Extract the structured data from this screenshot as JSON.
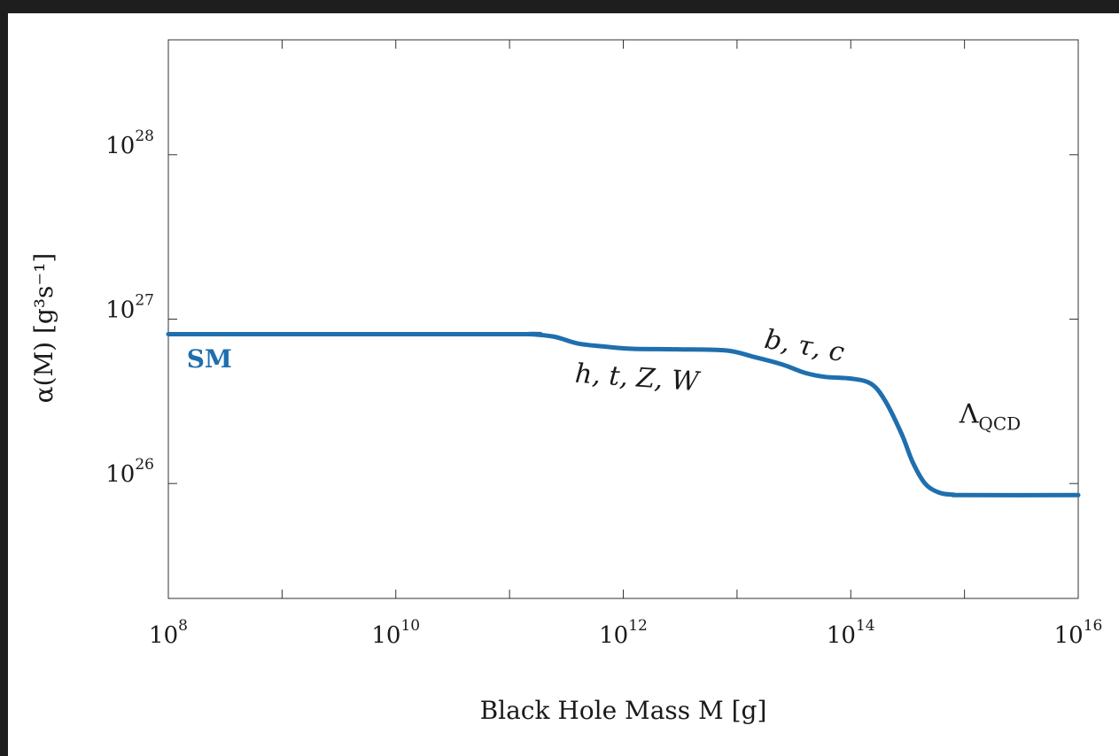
{
  "chart_data": {
    "type": "line",
    "title": "",
    "xlabel": "Black Hole Mass M [g]",
    "ylabel": "α(M) [g³s⁻¹]",
    "x_scale": "log",
    "y_scale": "log",
    "xlim": [
      100000000.0,
      1e+16
    ],
    "ylim": [
      2e+25,
      5e+28
    ],
    "x_ticks": [
      {
        "base": "10",
        "exp": "8",
        "value": 100000000.0
      },
      {
        "base": "10",
        "exp": "10",
        "value": 10000000000.0
      },
      {
        "base": "10",
        "exp": "12",
        "value": 1000000000000.0
      },
      {
        "base": "10",
        "exp": "14",
        "value": 100000000000000.0
      },
      {
        "base": "10",
        "exp": "16",
        "value": 1e+16
      }
    ],
    "y_ticks": [
      {
        "base": "10",
        "exp": "26",
        "value": 1e+26
      },
      {
        "base": "10",
        "exp": "27",
        "value": 1e+27
      },
      {
        "base": "10",
        "exp": "28",
        "value": 1e+28
      }
    ],
    "grid": false,
    "series": [
      {
        "name": "SM",
        "color": "#1f6fae",
        "points": [
          [
            100000000.0,
            8.1e+26
          ],
          [
            100000000000.0,
            8.1e+26
          ],
          [
            150000000000.0,
            8.1e+26
          ],
          [
            250000000000.0,
            7.8e+26
          ],
          [
            400000000000.0,
            7.1e+26
          ],
          [
            700000000000.0,
            6.8e+26
          ],
          [
            1200000000000.0,
            6.6e+26
          ],
          [
            3000000000000.0,
            6.55e+26
          ],
          [
            8000000000000.0,
            6.45e+26
          ],
          [
            14000000000000.0,
            5.9e+26
          ],
          [
            25000000000000.0,
            5.3e+26
          ],
          [
            40000000000000.0,
            4.7e+26
          ],
          [
            60000000000000.0,
            4.45e+26
          ],
          [
            100000000000000.0,
            4.35e+26
          ],
          [
            150000000000000.0,
            4.05e+26
          ],
          [
            200000000000000.0,
            3.2e+26
          ],
          [
            280000000000000.0,
            2e+26
          ],
          [
            350000000000000.0,
            1.35e+26
          ],
          [
            450000000000000.0,
            1e+26
          ],
          [
            600000000000000.0,
            8.8e+25
          ],
          [
            800000000000000.0,
            8.55e+25
          ],
          [
            1000000000000000.0,
            8.5e+25
          ],
          [
            1e+16,
            8.5e+25
          ]
        ]
      }
    ],
    "annotations": [
      {
        "text": "SM",
        "x": 145000000.0,
        "y": 5.7e+26,
        "style": "legend"
      },
      {
        "text": "h, t, Z, W",
        "x": 1300000000000.0,
        "y": 3.9e+26
      },
      {
        "text": "b, τ, c",
        "x": 38000000000000.0,
        "y": 6.1e+26
      },
      {
        "text": "Λ",
        "subscript": "QCD",
        "x": 900000000000000.0,
        "y": 2.35e+26
      }
    ]
  }
}
